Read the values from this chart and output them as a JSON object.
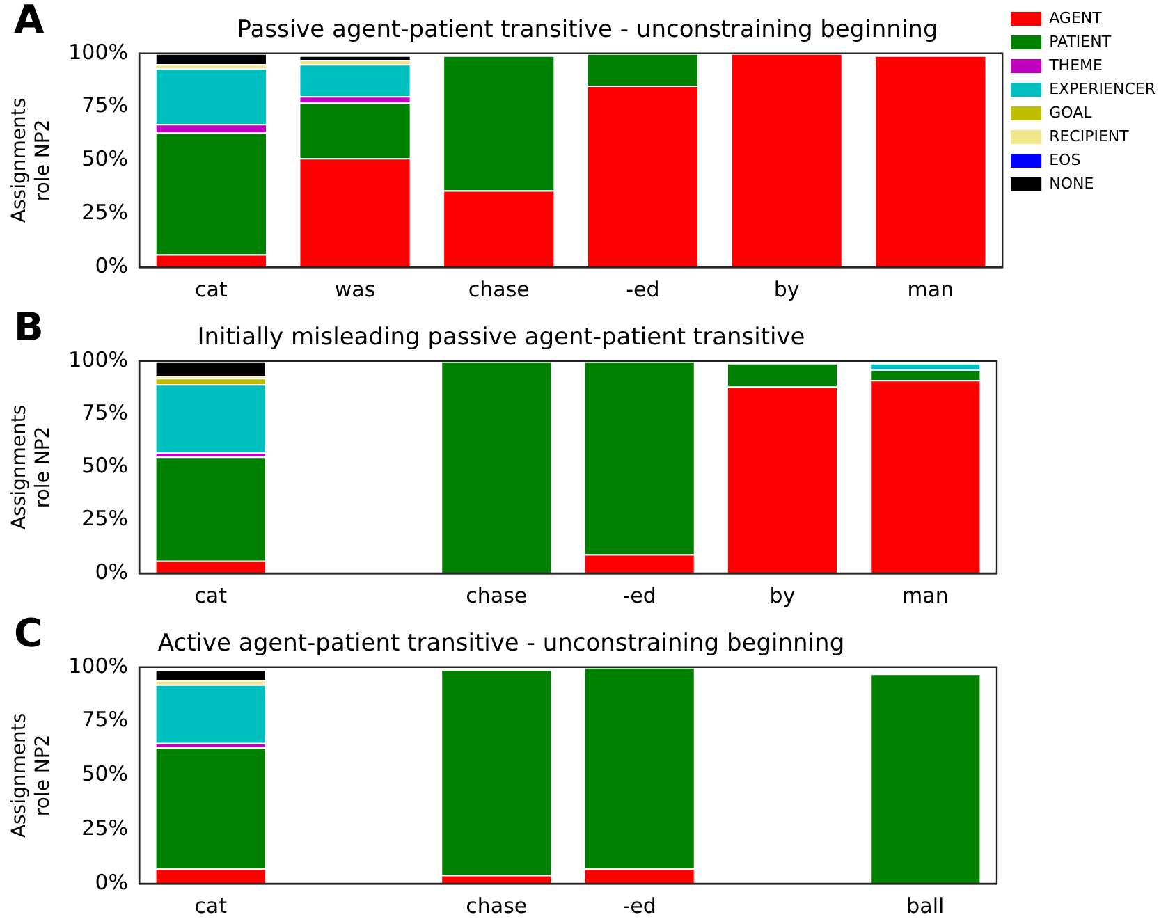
{
  "chart_data": [
    {
      "type": "bar",
      "title": "Passive agent-patient transitive - unconstraining beginning",
      "ylabel": "Assignments\nrole NP2",
      "annotations": [
        "A"
      ],
      "categories": [
        "cat",
        "was",
        "chase",
        "-ed",
        "by",
        "man"
      ],
      "stacked": true,
      "legend": "right",
      "ylim": [
        0,
        100
      ],
      "yticks": [
        {
          "value": 0,
          "label": "0%"
        },
        {
          "value": 25,
          "label": "25%"
        },
        {
          "value": 50,
          "label": "50%"
        },
        {
          "value": 75,
          "label": "75%"
        },
        {
          "value": 100,
          "label": "100%"
        }
      ],
      "series": [
        {
          "name": "AGENT",
          "color": "#ff0000",
          "values": [
            6,
            51,
            36,
            85,
            100,
            99
          ]
        },
        {
          "name": "PATIENT",
          "color": "#008000",
          "values": [
            57,
            26,
            63,
            15,
            0,
            0
          ]
        },
        {
          "name": "THEME",
          "color": "#bf00bf",
          "values": [
            4,
            3,
            0,
            0,
            0,
            0
          ]
        },
        {
          "name": "EXPERIENCER",
          "color": "#00bfbf",
          "values": [
            26,
            15,
            0,
            0,
            0,
            0
          ]
        },
        {
          "name": "GOAL",
          "color": "#bfbf00",
          "values": [
            0,
            0,
            0,
            0,
            0,
            0
          ]
        },
        {
          "name": "RECIPIENT",
          "color": "#f0e68c",
          "values": [
            2,
            2,
            0,
            0,
            0,
            0
          ]
        },
        {
          "name": "EOS",
          "color": "#0000ff",
          "values": [
            0,
            0,
            0,
            0,
            0,
            0
          ]
        },
        {
          "name": "NONE",
          "color": "#000000",
          "values": [
            5,
            2,
            0,
            0,
            0,
            0
          ]
        }
      ]
    },
    {
      "type": "bar",
      "title": "Initially misleading passive agent-patient transitive",
      "ylabel": "Assignments\nrole NP2",
      "annotations": [
        "B"
      ],
      "categories": [
        "cat",
        null,
        "chase",
        "-ed",
        "by",
        "man"
      ],
      "stacked": true,
      "ylim": [
        0,
        100
      ],
      "yticks": [
        {
          "value": 0,
          "label": "0%"
        },
        {
          "value": 25,
          "label": "25%"
        },
        {
          "value": 50,
          "label": "50%"
        },
        {
          "value": 75,
          "label": "75%"
        },
        {
          "value": 100,
          "label": "100%"
        }
      ],
      "series": [
        {
          "color": "#ff0000",
          "values": [
            6,
            0,
            0,
            9,
            88,
            91
          ]
        },
        {
          "color": "#008000",
          "values": [
            49,
            0,
            100,
            91,
            11,
            5
          ]
        },
        {
          "color": "#bf00bf",
          "values": [
            2,
            0,
            0,
            0,
            0,
            0
          ]
        },
        {
          "color": "#00bfbf",
          "values": [
            32,
            0,
            0,
            0,
            0,
            3
          ]
        },
        {
          "color": "#bfbf00",
          "values": [
            3,
            0,
            0,
            0,
            0,
            0
          ]
        },
        {
          "color": "#f0e68c",
          "values": [
            1,
            0,
            0,
            0,
            0,
            0
          ]
        },
        {
          "color": "#0000ff",
          "values": [
            0,
            0,
            0,
            0,
            0,
            0
          ]
        },
        {
          "color": "#000000",
          "values": [
            7,
            0,
            0,
            0,
            0,
            0
          ]
        }
      ]
    },
    {
      "type": "bar",
      "title": "Active agent-patient transitive - unconstraining beginning",
      "ylabel": "Assignments\nrole NP2",
      "annotations": [
        "C"
      ],
      "categories": [
        "cat",
        null,
        "chase",
        "-ed",
        null,
        "ball"
      ],
      "stacked": true,
      "ylim": [
        0,
        100
      ],
      "yticks": [
        {
          "value": 0,
          "label": "0%"
        },
        {
          "value": 25,
          "label": "25%"
        },
        {
          "value": 50,
          "label": "50%"
        },
        {
          "value": 75,
          "label": "75%"
        },
        {
          "value": 100,
          "label": "100%"
        }
      ],
      "series": [
        {
          "color": "#ff0000",
          "values": [
            7,
            0,
            4,
            7,
            0,
            0
          ]
        },
        {
          "color": "#008000",
          "values": [
            56,
            0,
            95,
            93,
            0,
            97
          ]
        },
        {
          "color": "#bf00bf",
          "values": [
            2,
            0,
            0,
            0,
            0,
            0
          ]
        },
        {
          "color": "#00bfbf",
          "values": [
            27,
            0,
            0,
            0,
            0,
            0
          ]
        },
        {
          "color": "#bfbf00",
          "values": [
            0,
            0,
            0,
            0,
            0,
            0
          ]
        },
        {
          "color": "#f0e68c",
          "values": [
            2,
            0,
            0,
            0,
            0,
            0
          ]
        },
        {
          "color": "#0000ff",
          "values": [
            0,
            0,
            0,
            0,
            0,
            0
          ]
        },
        {
          "color": "#000000",
          "values": [
            5,
            0,
            0,
            0,
            0,
            0
          ]
        }
      ]
    }
  ]
}
